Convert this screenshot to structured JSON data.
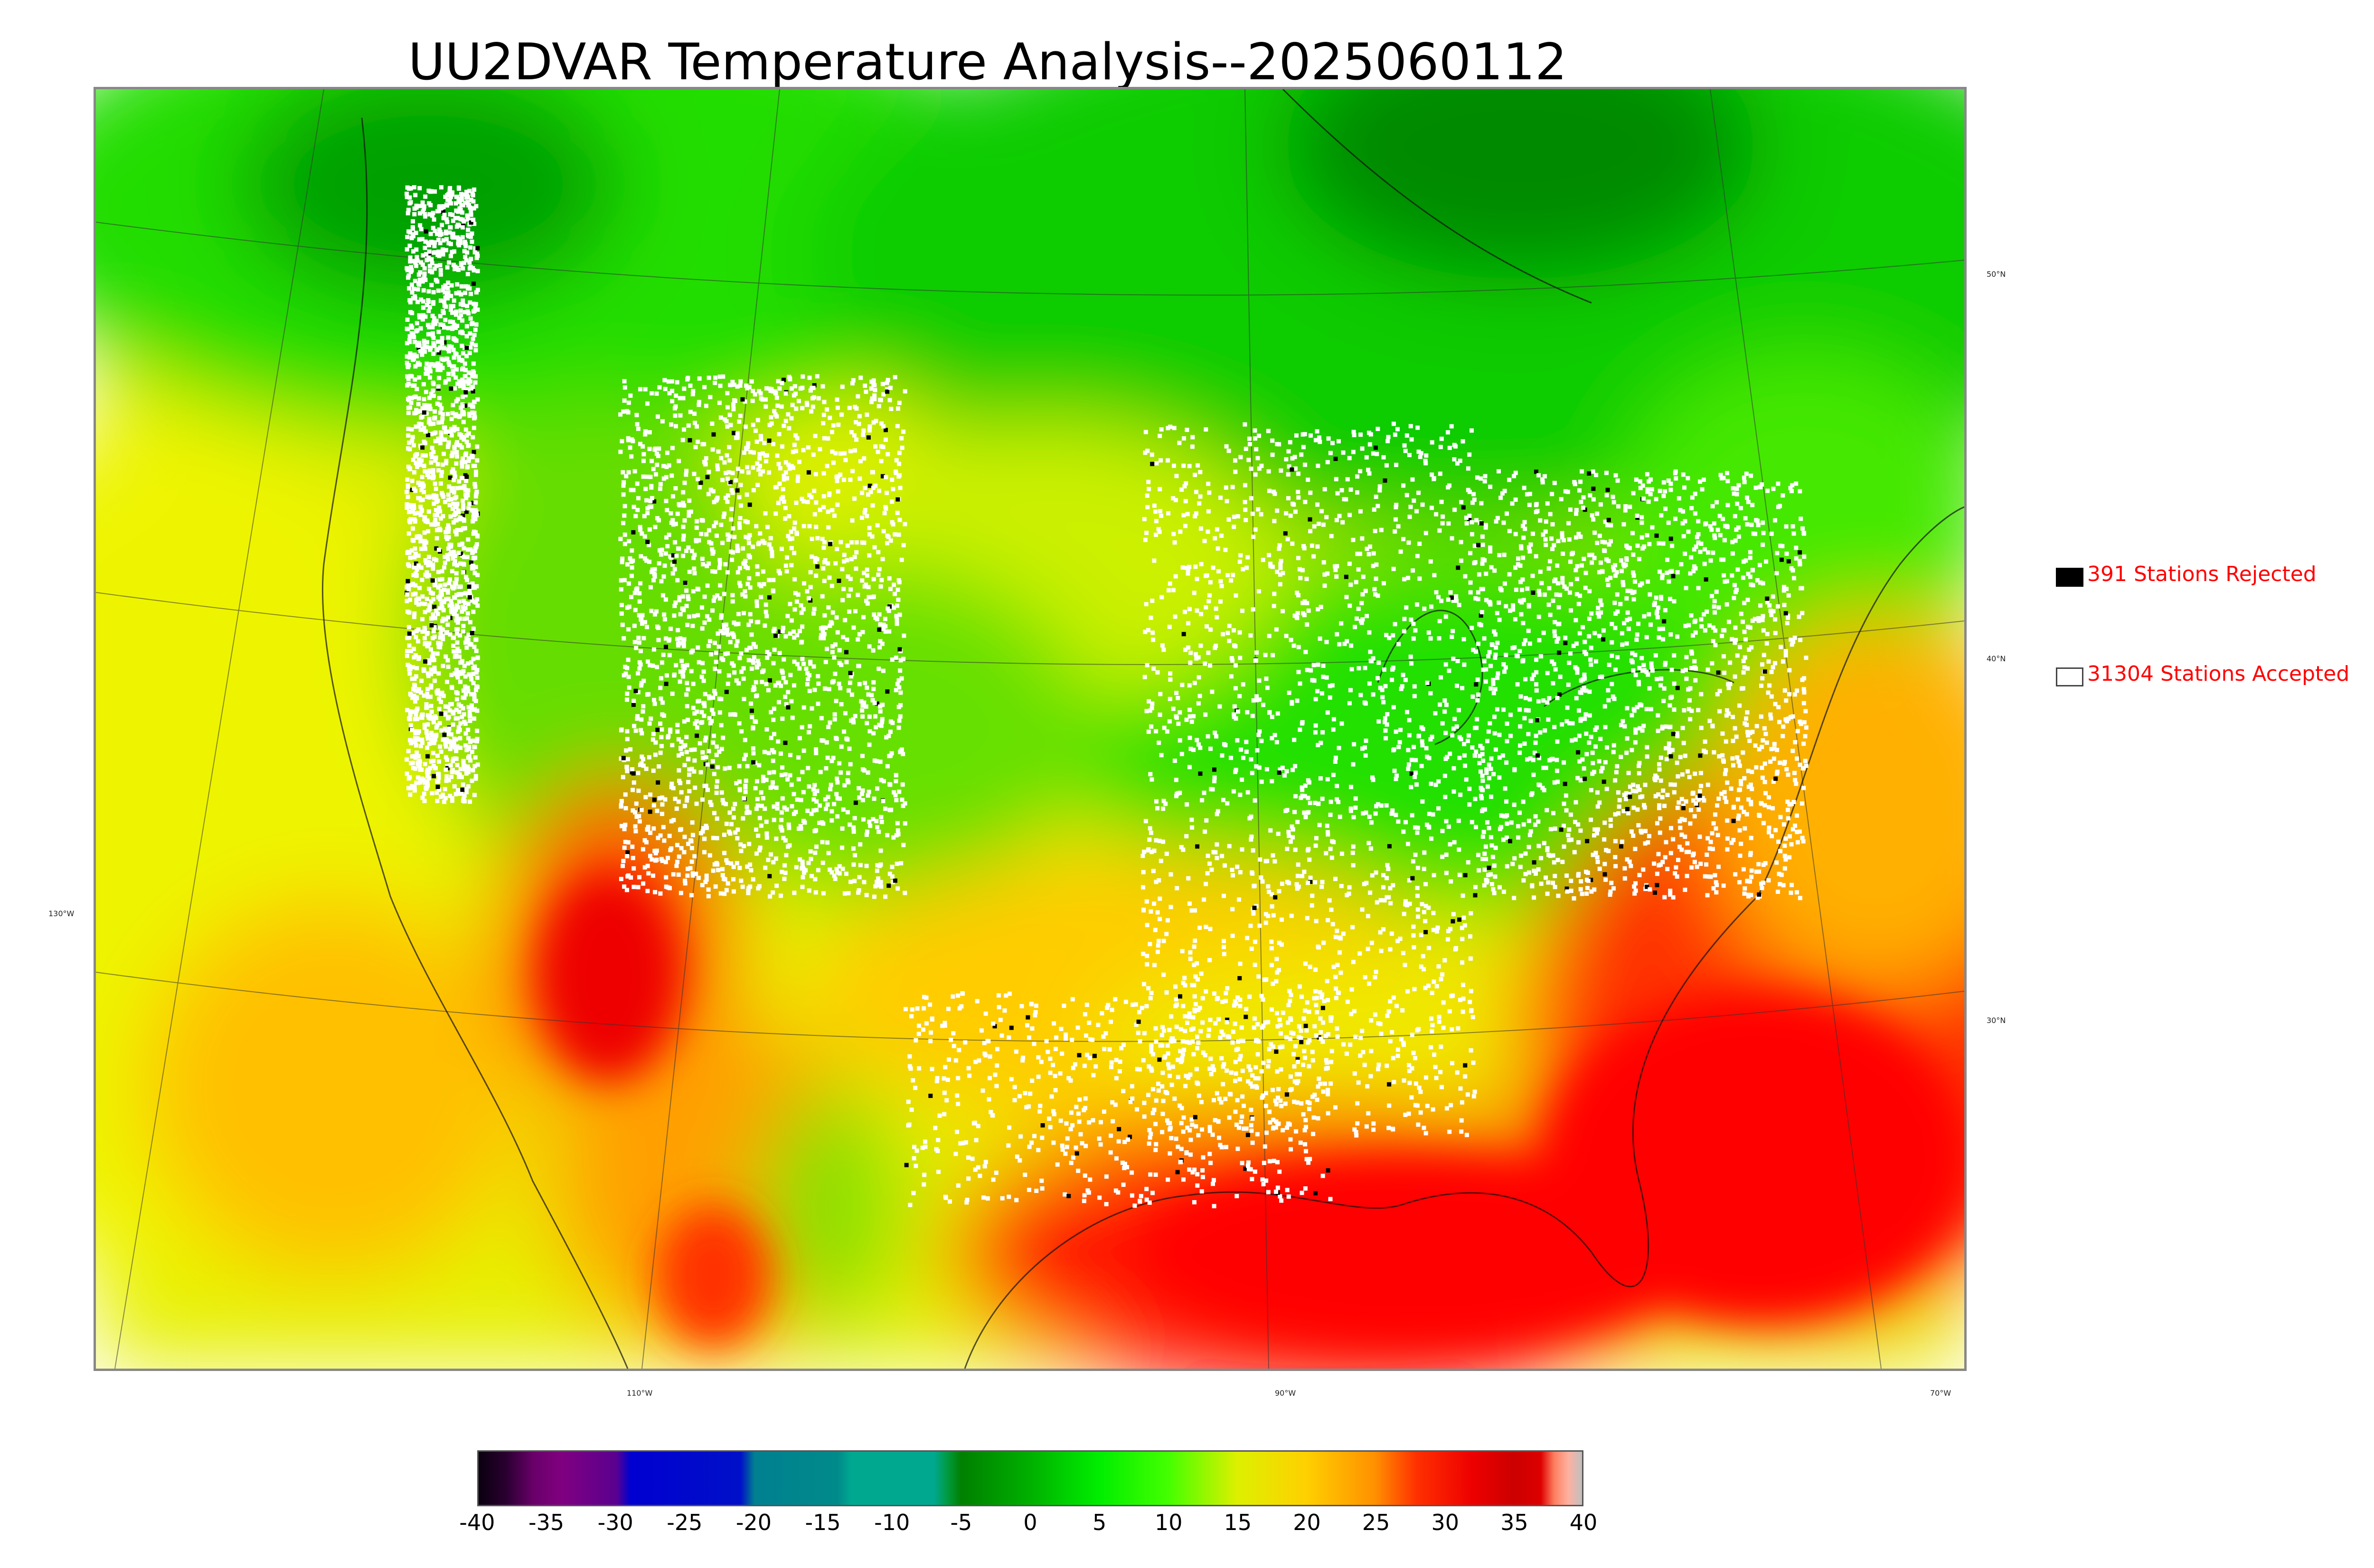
{
  "title": "UU2DVAR Temperature Analysis--2025060112",
  "legend": {
    "rejected_label": "391 Stations Rejected",
    "accepted_label": "31304 Stations Accepted",
    "rejected_color": "#000000",
    "accepted_color": "#ffffff"
  },
  "map_labels": {
    "lon": [
      "130°W",
      "110°W",
      "90°W",
      "70°W"
    ],
    "lat": [
      "50°N",
      "40°N",
      "30°N"
    ]
  },
  "colorbar": {
    "ticks": [
      "-40",
      "-35",
      "-30",
      "-25",
      "-20",
      "-15",
      "-10",
      "-5",
      "0",
      "5",
      "10",
      "15",
      "20",
      "25",
      "30",
      "35",
      "40"
    ],
    "min": -40,
    "max": 40,
    "stops": [
      {
        "v": -40,
        "c": "#0a0010"
      },
      {
        "v": -38,
        "c": "#2a0030"
      },
      {
        "v": -36,
        "c": "#6a006a"
      },
      {
        "v": -34,
        "c": "#800080"
      },
      {
        "v": -30,
        "c": "#5a0090"
      },
      {
        "v": -29,
        "c": "#0000d0"
      },
      {
        "v": -21,
        "c": "#0010c8"
      },
      {
        "v": -20,
        "c": "#008090"
      },
      {
        "v": -14,
        "c": "#008a8a"
      },
      {
        "v": -13,
        "c": "#00a890"
      },
      {
        "v": -7,
        "c": "#00a890"
      },
      {
        "v": -6,
        "c": "#009a40"
      },
      {
        "v": -5,
        "c": "#008000"
      },
      {
        "v": 0,
        "c": "#00b000"
      },
      {
        "v": 5,
        "c": "#00ee00"
      },
      {
        "v": 10,
        "c": "#44ff00"
      },
      {
        "v": 15,
        "c": "#ddf000"
      },
      {
        "v": 20,
        "c": "#ffd000"
      },
      {
        "v": 25,
        "c": "#ff9000"
      },
      {
        "v": 28,
        "c": "#ff3000"
      },
      {
        "v": 32,
        "c": "#ee0000"
      },
      {
        "v": 35,
        "c": "#cc0000"
      },
      {
        "v": 37,
        "c": "#dd0000"
      },
      {
        "v": 38,
        "c": "#ff8060"
      },
      {
        "v": 39,
        "c": "#ffb0a0"
      },
      {
        "v": 40,
        "c": "#c0c0c0"
      }
    ]
  },
  "field_colors": {
    "cold_north": "#009000",
    "cool": "#22dd00",
    "mild": "#aaff00",
    "warm": "#ffe000",
    "hot": "#ff9000",
    "very_hot": "#ff1500"
  }
}
